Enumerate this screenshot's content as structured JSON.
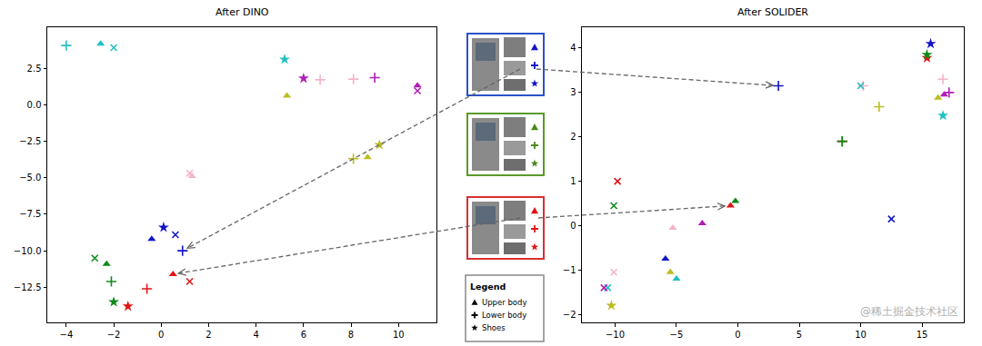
{
  "chart_data": [
    {
      "type": "scatter",
      "title": "After DINO",
      "xlim": [
        -4.8,
        11.6
      ],
      "xticks": [
        {
          "value": -4,
          "label": "−4"
        },
        {
          "value": -2,
          "label": "−2"
        },
        0,
        2,
        4,
        6,
        8,
        10
      ],
      "ylim": [
        -14.9,
        5.3
      ],
      "yticks": [
        {
          "value": -12.5,
          "label": "−12.5"
        },
        {
          "value": -10,
          "label": "−10.0"
        },
        {
          "value": -7.5,
          "label": "−7.5"
        },
        {
          "value": -5,
          "label": "−5.0"
        },
        {
          "value": -2.5,
          "label": "−2.5"
        },
        {
          "value": 0,
          "label": "0.0"
        },
        2.5
      ],
      "grid": false,
      "series": [
        {
          "color": "#22bfc4",
          "marker": "plus",
          "x": [
            -4.0
          ],
          "values": [
            4.05
          ]
        },
        {
          "color": "#22bfc4",
          "marker": "triangle",
          "x": [
            -2.55
          ],
          "values": [
            4.17
          ]
        },
        {
          "color": "#22bfc4",
          "marker": "x",
          "x": [
            -2.0
          ],
          "values": [
            3.9
          ]
        },
        {
          "color": "#22bfc4",
          "marker": "star",
          "x": [
            5.2
          ],
          "values": [
            3.1
          ]
        },
        {
          "color": "#bcbd22",
          "marker": "triangle",
          "x": [
            5.3,
            8.7
          ],
          "values": [
            0.6,
            -3.6
          ]
        },
        {
          "color": "#bcbd22",
          "marker": "plus",
          "x": [
            8.1
          ],
          "values": [
            -3.7
          ]
        },
        {
          "color": "#bcbd22",
          "marker": "star",
          "x": [
            9.2
          ],
          "values": [
            -2.75
          ]
        },
        {
          "color": "#b01fb6",
          "marker": "star",
          "x": [
            6.0
          ],
          "values": [
            1.8
          ]
        },
        {
          "color": "#b01fb6",
          "marker": "plus",
          "x": [
            9.0
          ],
          "values": [
            1.85
          ]
        },
        {
          "color": "#b01fb6",
          "marker": "triangle",
          "x": [
            10.8
          ],
          "values": [
            1.3
          ]
        },
        {
          "color": "#b01fb6",
          "marker": "x",
          "x": [
            10.8
          ],
          "values": [
            0.95
          ]
        },
        {
          "color": "#f4b4c8",
          "marker": "plus",
          "x": [
            6.7,
            8.1
          ],
          "values": [
            1.7,
            1.75
          ]
        },
        {
          "color": "#f4b4c8",
          "marker": "x",
          "x": [
            1.2
          ],
          "values": [
            -4.7
          ]
        },
        {
          "color": "#f4b4c8",
          "marker": "triangle",
          "x": [
            1.3
          ],
          "values": [
            -4.9
          ]
        },
        {
          "color": "#1414c8",
          "marker": "triangle",
          "x": [
            -0.4
          ],
          "values": [
            -9.2
          ]
        },
        {
          "color": "#1414c8",
          "marker": "star",
          "x": [
            0.1
          ],
          "values": [
            -8.4
          ]
        },
        {
          "color": "#1414c8",
          "marker": "x",
          "x": [
            0.6
          ],
          "values": [
            -8.9
          ]
        },
        {
          "color": "#1414c8",
          "marker": "plus",
          "x": [
            0.9
          ],
          "values": [
            -10.0
          ]
        },
        {
          "color": "#0f8a1a",
          "marker": "x",
          "x": [
            -2.8
          ],
          "values": [
            -10.5
          ]
        },
        {
          "color": "#0f8a1a",
          "marker": "triangle",
          "x": [
            -2.3
          ],
          "values": [
            -10.9
          ]
        },
        {
          "color": "#0f8a1a",
          "marker": "plus",
          "x": [
            -2.1
          ],
          "values": [
            -12.1
          ]
        },
        {
          "color": "#0f8a1a",
          "marker": "star",
          "x": [
            -2.0
          ],
          "values": [
            -13.5
          ]
        },
        {
          "color": "#e01616",
          "marker": "plus",
          "x": [
            -0.6
          ],
          "values": [
            -12.6
          ]
        },
        {
          "color": "#e01616",
          "marker": "star",
          "x": [
            -1.4
          ],
          "values": [
            -13.8
          ]
        },
        {
          "color": "#e01616",
          "marker": "triangle",
          "x": [
            0.5
          ],
          "values": [
            -11.6
          ]
        },
        {
          "color": "#e01616",
          "marker": "x",
          "x": [
            1.2
          ],
          "values": [
            -12.1
          ]
        }
      ]
    },
    {
      "type": "scatter",
      "title": "After SOLIDER",
      "xlim": [
        -12.7,
        18.4
      ],
      "xticks": [
        {
          "value": -10,
          "label": "−10"
        },
        {
          "value": -5,
          "label": "−5"
        },
        0,
        5,
        10,
        15
      ],
      "ylim": [
        -2.18,
        4.47
      ],
      "yticks": [
        {
          "value": -2,
          "label": "−2"
        },
        {
          "value": -1,
          "label": "−1"
        },
        0,
        1,
        2,
        3,
        4
      ],
      "grid": false,
      "series": [
        {
          "color": "#1414c8",
          "marker": "star",
          "x": [
            15.7
          ],
          "values": [
            4.1
          ]
        },
        {
          "color": "#1414c8",
          "marker": "plus",
          "x": [
            3.3
          ],
          "values": [
            3.15
          ]
        },
        {
          "color": "#1414c8",
          "marker": "x",
          "x": [
            12.5
          ],
          "values": [
            0.15
          ]
        },
        {
          "color": "#1414c8",
          "marker": "triangle",
          "x": [
            -5.9
          ],
          "values": [
            -0.75
          ]
        },
        {
          "color": "#e01616",
          "marker": "star",
          "x": [
            15.4
          ],
          "values": [
            3.78
          ]
        },
        {
          "color": "#0f8a1a",
          "marker": "star",
          "x": [
            15.4
          ],
          "values": [
            3.85
          ]
        },
        {
          "color": "#f4b4c8",
          "marker": "plus",
          "x": [
            16.7,
            10.2
          ],
          "values": [
            3.3,
            3.15
          ]
        },
        {
          "color": "#b01fb6",
          "marker": "plus",
          "x": [
            17.2
          ],
          "values": [
            3.0
          ]
        },
        {
          "color": "#b01fb6",
          "marker": "triangle",
          "x": [
            16.8,
            -2.9
          ],
          "values": [
            2.95,
            0.05
          ]
        },
        {
          "color": "#bcbd22",
          "marker": "triangle",
          "x": [
            16.3,
            -5.5
          ],
          "values": [
            2.88,
            -1.05
          ]
        },
        {
          "color": "#22bfc4",
          "marker": "star",
          "x": [
            16.7
          ],
          "values": [
            2.48
          ]
        },
        {
          "color": "#22bfc4",
          "marker": "x",
          "x": [
            10.0,
            -10.6
          ],
          "values": [
            3.15,
            -1.4
          ]
        },
        {
          "color": "#bcbd22",
          "marker": "plus",
          "x": [
            11.5
          ],
          "values": [
            2.68
          ]
        },
        {
          "color": "#e01616",
          "marker": "plus",
          "x": [
            8.5
          ],
          "values": [
            1.9
          ]
        },
        {
          "color": "#0f8a1a",
          "marker": "plus",
          "x": [
            8.5
          ],
          "values": [
            1.9
          ]
        },
        {
          "color": "#e01616",
          "marker": "x",
          "x": [
            -9.8
          ],
          "values": [
            1.0
          ]
        },
        {
          "color": "#0f8a1a",
          "marker": "x",
          "x": [
            -10.1
          ],
          "values": [
            0.45
          ]
        },
        {
          "color": "#0f8a1a",
          "marker": "triangle",
          "x": [
            -0.2
          ],
          "values": [
            0.55
          ]
        },
        {
          "color": "#e01616",
          "marker": "triangle",
          "x": [
            -0.6
          ],
          "values": [
            0.45
          ]
        },
        {
          "color": "#f4b4c8",
          "marker": "triangle",
          "x": [
            -5.3
          ],
          "values": [
            -0.05
          ]
        },
        {
          "color": "#22bfc4",
          "marker": "triangle",
          "x": [
            -5.0
          ],
          "values": [
            -1.2
          ]
        },
        {
          "color": "#f4b4c8",
          "marker": "x",
          "x": [
            -10.1
          ],
          "values": [
            -1.05
          ]
        },
        {
          "color": "#b01fb6",
          "marker": "x",
          "x": [
            -10.9
          ],
          "values": [
            -1.4
          ]
        },
        {
          "color": "#bcbd22",
          "marker": "star",
          "x": [
            -10.3
          ],
          "values": [
            -1.8
          ]
        }
      ]
    }
  ],
  "legend_box": {
    "title": "Legend",
    "entries": [
      {
        "marker": "triangle",
        "label": "Upper body"
      },
      {
        "marker": "plus",
        "label": "Lower body"
      },
      {
        "marker": "star",
        "label": "Shoes"
      }
    ]
  },
  "watermark": "@稀土掘金技术社区"
}
